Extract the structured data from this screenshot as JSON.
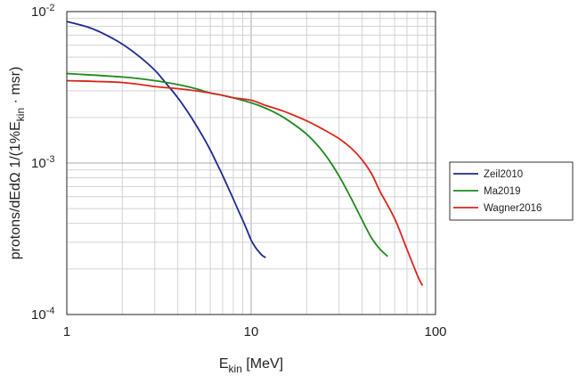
{
  "chart_data": {
    "type": "line",
    "x_scale": "log",
    "y_scale": "log",
    "xlim": [
      1,
      100
    ],
    "ylim": [
      0.0001,
      0.01
    ],
    "grid": true,
    "legend_position": "right",
    "xlabel": {
      "base": "E",
      "sub": "kin",
      "rest": " [MeV]"
    },
    "ylabel": {
      "part1": "protons/dEdΩ   1/(1%E",
      "sub": "kin",
      "part2": " · msr)"
    },
    "x_ticks": [
      {
        "value": 1,
        "label": "1"
      },
      {
        "value": 10,
        "label": "10"
      },
      {
        "value": 100,
        "label": "100"
      }
    ],
    "y_ticks": [
      {
        "value": 0.01,
        "base": "10",
        "exp": "-2"
      },
      {
        "value": 0.001,
        "base": "10",
        "exp": "-3"
      },
      {
        "value": 0.0001,
        "base": "10",
        "exp": "-4"
      }
    ],
    "series": [
      {
        "name": "Zeil2010",
        "color": "#1f2a8c",
        "x": [
          1,
          1.3,
          1.6,
          2,
          2.5,
          3,
          3.5,
          4,
          4.5,
          5,
          5.5,
          6,
          6.5,
          7,
          7.5,
          8,
          8.5,
          9,
          9.5,
          10,
          10.5,
          11,
          11.5,
          12
        ],
        "y": [
          0.0086,
          0.0079,
          0.0071,
          0.0061,
          0.005,
          0.0041,
          0.0033,
          0.0027,
          0.0022,
          0.0018,
          0.00148,
          0.00122,
          0.001,
          0.00083,
          0.00069,
          0.00058,
          0.00049,
          0.00042,
          0.00036,
          0.00031,
          0.00028,
          0.00026,
          0.000245,
          0.000238
        ]
      },
      {
        "name": "Ma2019",
        "color": "#1e8a1e",
        "x": [
          1,
          2,
          3,
          4,
          5,
          6,
          7,
          8,
          10,
          12,
          15,
          20,
          25,
          30,
          35,
          40,
          45,
          50,
          55
        ],
        "y": [
          0.0039,
          0.0037,
          0.0035,
          0.0033,
          0.0031,
          0.0029,
          0.0028,
          0.0027,
          0.0025,
          0.0023,
          0.002,
          0.00155,
          0.00115,
          0.00082,
          0.00058,
          0.00042,
          0.00032,
          0.00027,
          0.000242
        ]
      },
      {
        "name": "Wagner2016",
        "color": "#d9261c",
        "x": [
          1,
          2,
          3,
          4,
          5,
          6,
          7,
          8,
          10,
          12,
          15,
          20,
          25,
          30,
          35,
          40,
          45,
          50,
          60,
          70,
          80,
          85
        ],
        "y": [
          0.0035,
          0.0034,
          0.0032,
          0.0031,
          0.003,
          0.0029,
          0.0028,
          0.0027,
          0.0026,
          0.0024,
          0.0022,
          0.0019,
          0.00165,
          0.00145,
          0.00125,
          0.00105,
          0.00085,
          0.00065,
          0.00043,
          0.00027,
          0.00018,
          0.000155
        ]
      }
    ]
  }
}
